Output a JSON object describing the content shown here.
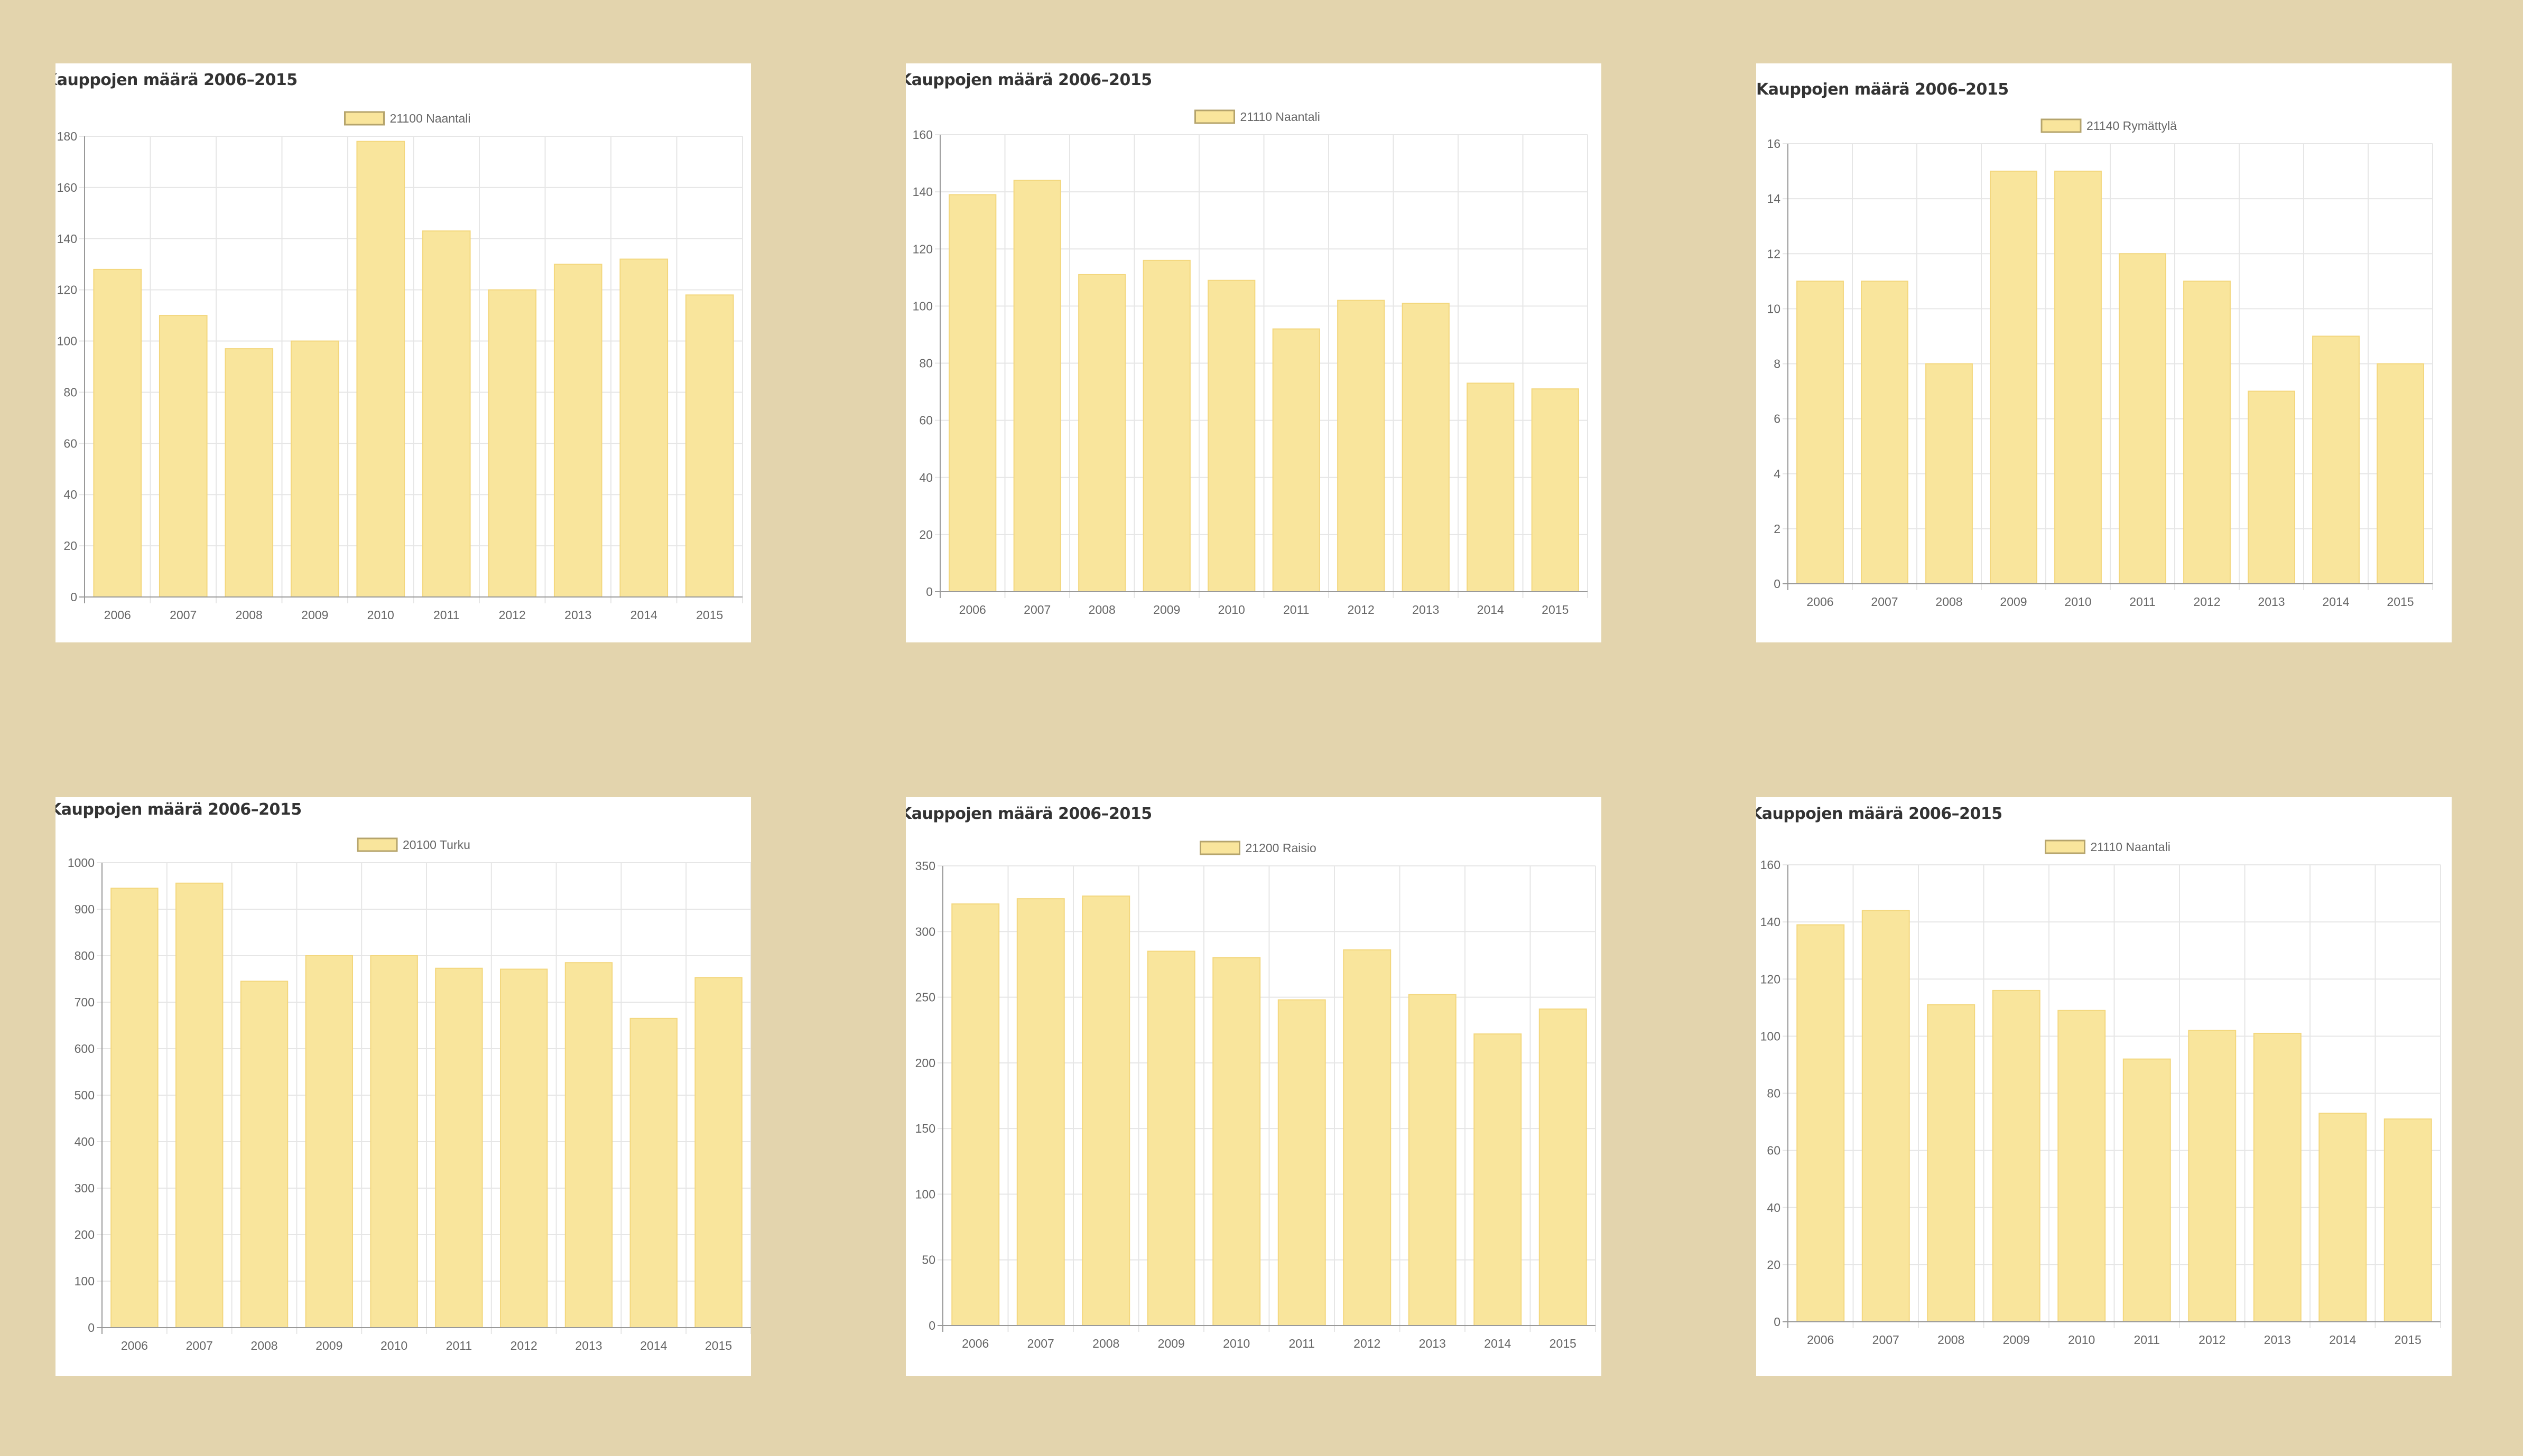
{
  "page": {
    "background_color": "#e3d4ad",
    "bar_fill_color": "#f9e59c",
    "bar_stroke_color": "#f3d77e",
    "legend_swatch_border": "#b5a46c",
    "grid_color": "#e6e6e6",
    "axis_color": "#999999"
  },
  "chart_data": [
    {
      "type": "bar",
      "title": "Kauppojen määrä 2006–2015",
      "legend": "21100 Naantali",
      "legend_position": "top-center",
      "categories": [
        "2006",
        "2007",
        "2008",
        "2009",
        "2010",
        "2011",
        "2012",
        "2013",
        "2014",
        "2015"
      ],
      "values": [
        128,
        110,
        97,
        100,
        178,
        143,
        120,
        130,
        132,
        118
      ],
      "ylim": [
        0,
        180
      ],
      "yticks": [
        0,
        20,
        40,
        60,
        80,
        100,
        120,
        140,
        160,
        180
      ],
      "xlabel": "",
      "ylabel": "",
      "grid": true
    },
    {
      "type": "bar",
      "title": "Kauppojen määrä 2006–2015",
      "legend": "21110 Naantali",
      "legend_position": "top-center",
      "categories": [
        "2006",
        "2007",
        "2008",
        "2009",
        "2010",
        "2011",
        "2012",
        "2013",
        "2014",
        "2015"
      ],
      "values": [
        139,
        144,
        111,
        116,
        109,
        92,
        102,
        101,
        73,
        71
      ],
      "ylim": [
        0,
        160
      ],
      "yticks": [
        0,
        20,
        40,
        60,
        80,
        100,
        120,
        140,
        160
      ],
      "xlabel": "",
      "ylabel": "",
      "grid": true
    },
    {
      "type": "bar",
      "title": "Kauppojen määrä 2006–2015",
      "legend": "21140 Rymättylä",
      "legend_position": "top-center",
      "categories": [
        "2006",
        "2007",
        "2008",
        "2009",
        "2010",
        "2011",
        "2012",
        "2013",
        "2014",
        "2015"
      ],
      "values": [
        11,
        11,
        8,
        15,
        15,
        12,
        11,
        7,
        9,
        8
      ],
      "ylim": [
        0,
        16
      ],
      "yticks": [
        0,
        2,
        4,
        6,
        8,
        10,
        12,
        14,
        16
      ],
      "xlabel": "",
      "ylabel": "",
      "grid": true
    },
    {
      "type": "bar",
      "title": "Kauppojen määrä 2006–2015",
      "legend": "20100 Turku",
      "legend_position": "top-center",
      "categories": [
        "2006",
        "2007",
        "2008",
        "2009",
        "2010",
        "2011",
        "2012",
        "2013",
        "2014",
        "2015"
      ],
      "values": [
        945,
        956,
        745,
        800,
        800,
        773,
        771,
        785,
        665,
        753
      ],
      "ylim": [
        0,
        1000
      ],
      "yticks": [
        0,
        100,
        200,
        300,
        400,
        500,
        600,
        700,
        800,
        900,
        1000
      ],
      "xlabel": "",
      "ylabel": "",
      "grid": true
    },
    {
      "type": "bar",
      "title": "Kauppojen määrä 2006–2015",
      "legend": "21200 Raisio",
      "legend_position": "top-center",
      "categories": [
        "2006",
        "2007",
        "2008",
        "2009",
        "2010",
        "2011",
        "2012",
        "2013",
        "2014",
        "2015"
      ],
      "values": [
        321,
        325,
        327,
        285,
        280,
        248,
        286,
        252,
        222,
        241
      ],
      "ylim": [
        0,
        350
      ],
      "yticks": [
        0,
        50,
        100,
        150,
        200,
        250,
        300,
        350
      ],
      "xlabel": "",
      "ylabel": "",
      "grid": true
    },
    {
      "type": "bar",
      "title": "Kauppojen määrä 2006–2015",
      "legend": "21110 Naantali",
      "legend_position": "top-center",
      "categories": [
        "2006",
        "2007",
        "2008",
        "2009",
        "2010",
        "2011",
        "2012",
        "2013",
        "2014",
        "2015"
      ],
      "values": [
        139,
        144,
        111,
        116,
        109,
        92,
        102,
        101,
        73,
        71
      ],
      "ylim": [
        0,
        160
      ],
      "yticks": [
        0,
        20,
        40,
        60,
        80,
        100,
        120,
        140,
        160
      ],
      "xlabel": "",
      "ylabel": "",
      "grid": true
    }
  ]
}
